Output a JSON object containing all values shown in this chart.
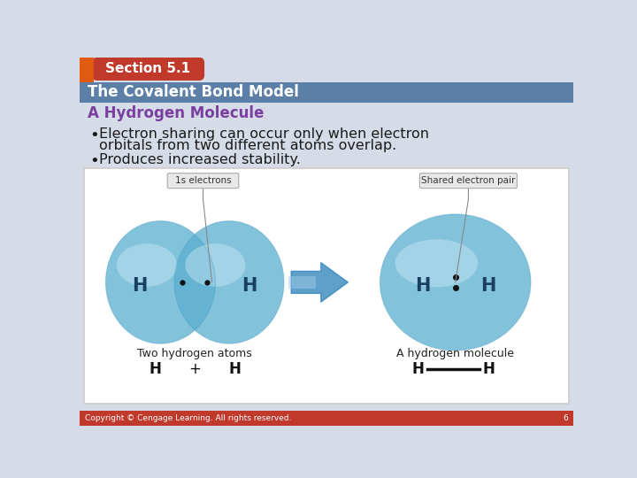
{
  "section_label": "Section 5.1",
  "subtitle": "The Covalent Bond Model",
  "topic": "A Hydrogen Molecule",
  "bullet1_line1": "Electron sharing can occur only when electron",
  "bullet1_line2": "orbitals from two different atoms overlap.",
  "bullet2": "Produces increased stability.",
  "label_1s": "1s electrons",
  "label_shared": "Shared electron pair",
  "label_two_h": "Two hydrogen atoms",
  "label_h_mol": "A hydrogen molecule",
  "footer": "Copyright © Cengage Learning. All rights reserved.",
  "page_num": "6",
  "bg_color": "#d5dce8",
  "header_tab_bg": "#c0392b",
  "header_tab_text": "#ffffff",
  "header_bar_bg": "#5b7fa6",
  "header_bar_text": "#ffffff",
  "footer_bg": "#c0392b",
  "footer_text": "#ffffff",
  "topic_color": "#7b3fa0",
  "bullet_color": "#1a1a1a",
  "atom_color_light": "#a8d4e8",
  "atom_color_mid": "#5aaed0",
  "atom_color_dark": "#2980b9",
  "dot_color": "#111111",
  "arrow_color_light": "#a0c8e8",
  "arrow_color_dark": "#2980b9",
  "bond_line_color": "#111111",
  "label_box_color": "#e8e8e8",
  "label_box_edge": "#aaaaaa",
  "orange_rect_color": "#e05a10",
  "img_bg": "#ffffff",
  "img_edge": "#cccccc"
}
